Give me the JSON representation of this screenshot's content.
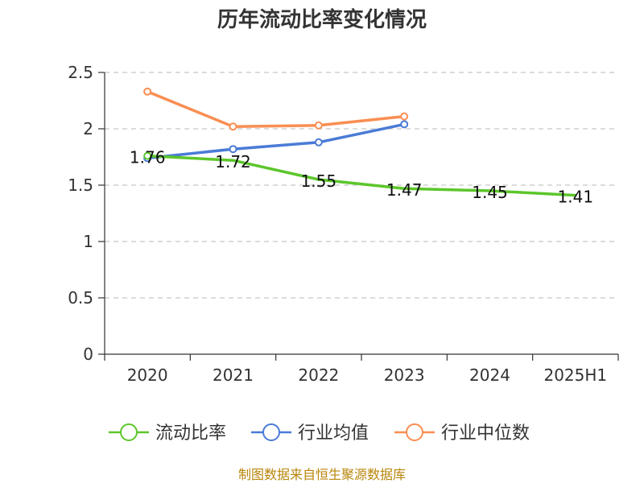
{
  "chart_data": {
    "type": "line",
    "title": "历年流动比率变化情况",
    "categories": [
      "2020",
      "2021",
      "2022",
      "2023",
      "2024",
      "2025H1"
    ],
    "ylim": [
      0,
      2.5
    ],
    "yticks": [
      "0",
      "0.5",
      "1",
      "1.5",
      "2",
      "2.5"
    ],
    "grid": true,
    "legend_position": "bottom",
    "series": [
      {
        "name": "流动比率",
        "color": "#5cc62b",
        "values": [
          1.76,
          1.72,
          1.55,
          1.47,
          1.45,
          1.41
        ],
        "labels": [
          "1.76",
          "1.72",
          "1.55",
          "1.47",
          "1.45",
          "1.41"
        ],
        "markers": "first"
      },
      {
        "name": "行业均值",
        "color": "#4a7bd6",
        "values": [
          1.74,
          1.82,
          1.88,
          2.04,
          null,
          null
        ],
        "markers": "all"
      },
      {
        "name": "行业中位数",
        "color": "#f98e52",
        "values": [
          2.33,
          2.02,
          2.03,
          2.11,
          null,
          null
        ],
        "markers": "all"
      }
    ],
    "source": "制图数据来自恒生聚源数据库"
  }
}
